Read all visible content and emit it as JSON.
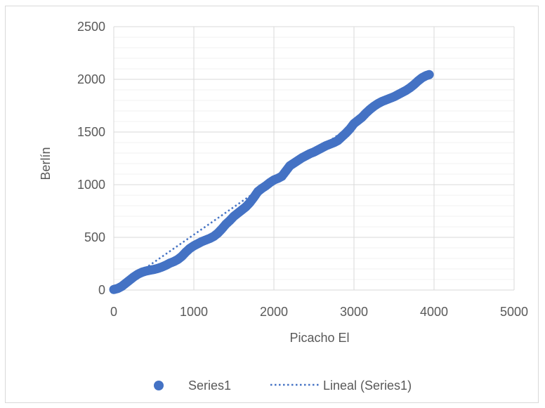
{
  "chart_data": {
    "type": "scatter",
    "title": "",
    "xlabel": "Picacho El",
    "ylabel": "Berlín",
    "xlim": [
      0,
      5000
    ],
    "ylim": [
      0,
      2500
    ],
    "x_ticks": [
      0,
      1000,
      2000,
      3000,
      4000,
      5000
    ],
    "y_ticks": [
      0,
      500,
      1000,
      1500,
      2000,
      2500
    ],
    "x_tick_labels": [
      "0",
      "1000",
      "2000",
      "3000",
      "4000",
      "5000"
    ],
    "y_tick_labels": [
      "0",
      "500",
      "1000",
      "1500",
      "2000",
      "2500"
    ],
    "grid": true,
    "minor_grid_y": true,
    "legend_position": "bottom",
    "series": [
      {
        "name": "Series1",
        "marker": "circle",
        "color": "#4472c4",
        "points": [
          [
            0,
            5
          ],
          [
            50,
            15
          ],
          [
            100,
            35
          ],
          [
            150,
            65
          ],
          [
            200,
            95
          ],
          [
            250,
            125
          ],
          [
            300,
            150
          ],
          [
            350,
            168
          ],
          [
            400,
            180
          ],
          [
            450,
            188
          ],
          [
            500,
            195
          ],
          [
            550,
            205
          ],
          [
            600,
            218
          ],
          [
            650,
            235
          ],
          [
            700,
            255
          ],
          [
            750,
            270
          ],
          [
            800,
            290
          ],
          [
            850,
            320
          ],
          [
            900,
            360
          ],
          [
            950,
            395
          ],
          [
            1000,
            420
          ],
          [
            1050,
            440
          ],
          [
            1100,
            460
          ],
          [
            1150,
            475
          ],
          [
            1200,
            490
          ],
          [
            1250,
            510
          ],
          [
            1300,
            540
          ],
          [
            1350,
            580
          ],
          [
            1400,
            625
          ],
          [
            1450,
            660
          ],
          [
            1500,
            700
          ],
          [
            1550,
            730
          ],
          [
            1600,
            760
          ],
          [
            1650,
            790
          ],
          [
            1700,
            830
          ],
          [
            1750,
            880
          ],
          [
            1800,
            935
          ],
          [
            1850,
            965
          ],
          [
            1900,
            990
          ],
          [
            1950,
            1020
          ],
          [
            2000,
            1045
          ],
          [
            2050,
            1060
          ],
          [
            2100,
            1080
          ],
          [
            2150,
            1130
          ],
          [
            2200,
            1180
          ],
          [
            2250,
            1205
          ],
          [
            2300,
            1230
          ],
          [
            2350,
            1255
          ],
          [
            2400,
            1275
          ],
          [
            2450,
            1295
          ],
          [
            2500,
            1310
          ],
          [
            2550,
            1330
          ],
          [
            2600,
            1350
          ],
          [
            2650,
            1370
          ],
          [
            2700,
            1385
          ],
          [
            2750,
            1400
          ],
          [
            2800,
            1420
          ],
          [
            2850,
            1455
          ],
          [
            2900,
            1490
          ],
          [
            2950,
            1530
          ],
          [
            3000,
            1580
          ],
          [
            3050,
            1610
          ],
          [
            3100,
            1640
          ],
          [
            3150,
            1680
          ],
          [
            3200,
            1715
          ],
          [
            3250,
            1745
          ],
          [
            3300,
            1770
          ],
          [
            3350,
            1790
          ],
          [
            3400,
            1805
          ],
          [
            3450,
            1820
          ],
          [
            3500,
            1835
          ],
          [
            3550,
            1855
          ],
          [
            3600,
            1875
          ],
          [
            3650,
            1895
          ],
          [
            3700,
            1920
          ],
          [
            3750,
            1950
          ],
          [
            3800,
            1985
          ],
          [
            3850,
            2015
          ],
          [
            3900,
            2035
          ],
          [
            3940,
            2045
          ]
        ]
      },
      {
        "name": "Lineal (Series1)",
        "type": "trendline",
        "color": "#4472c4",
        "dash": "dotted",
        "points": [
          [
            0,
            -20
          ],
          [
            3940,
            2070
          ]
        ]
      }
    ]
  }
}
